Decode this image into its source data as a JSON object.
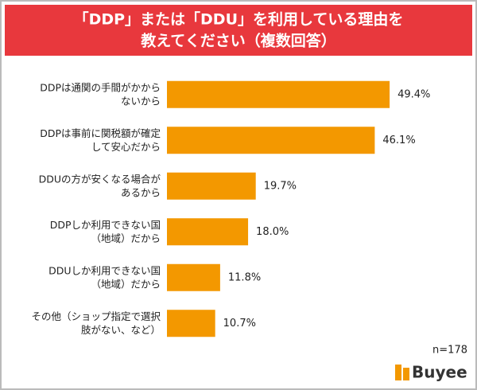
{
  "chart_data": {
    "type": "bar",
    "orientation": "horizontal",
    "title": [
      "「DDP」または「DDU」を利用している理由を",
      "教えてください（複数回答）"
    ],
    "categories": [
      [
        "DDPは通関の手間がかから",
        "ないから"
      ],
      [
        "DDPは事前に関税額が確定",
        "して安心だから"
      ],
      [
        "DDUの方が安くなる場合が",
        "あるから"
      ],
      [
        "DDPしか利用できない国",
        "（地域）だから"
      ],
      [
        "DDUしか利用できない国",
        "（地域）だから"
      ],
      [
        "その他（ショップ指定で選択",
        "肢がない、など）"
      ]
    ],
    "values": [
      49.4,
      46.1,
      19.7,
      18.0,
      11.8,
      10.7
    ],
    "value_labels": [
      "49.4%",
      "46.1%",
      "19.7%",
      "18.0%",
      "11.8%",
      "10.7%"
    ],
    "color": "#f39800",
    "note": "n=178",
    "brand": "Buyee"
  }
}
